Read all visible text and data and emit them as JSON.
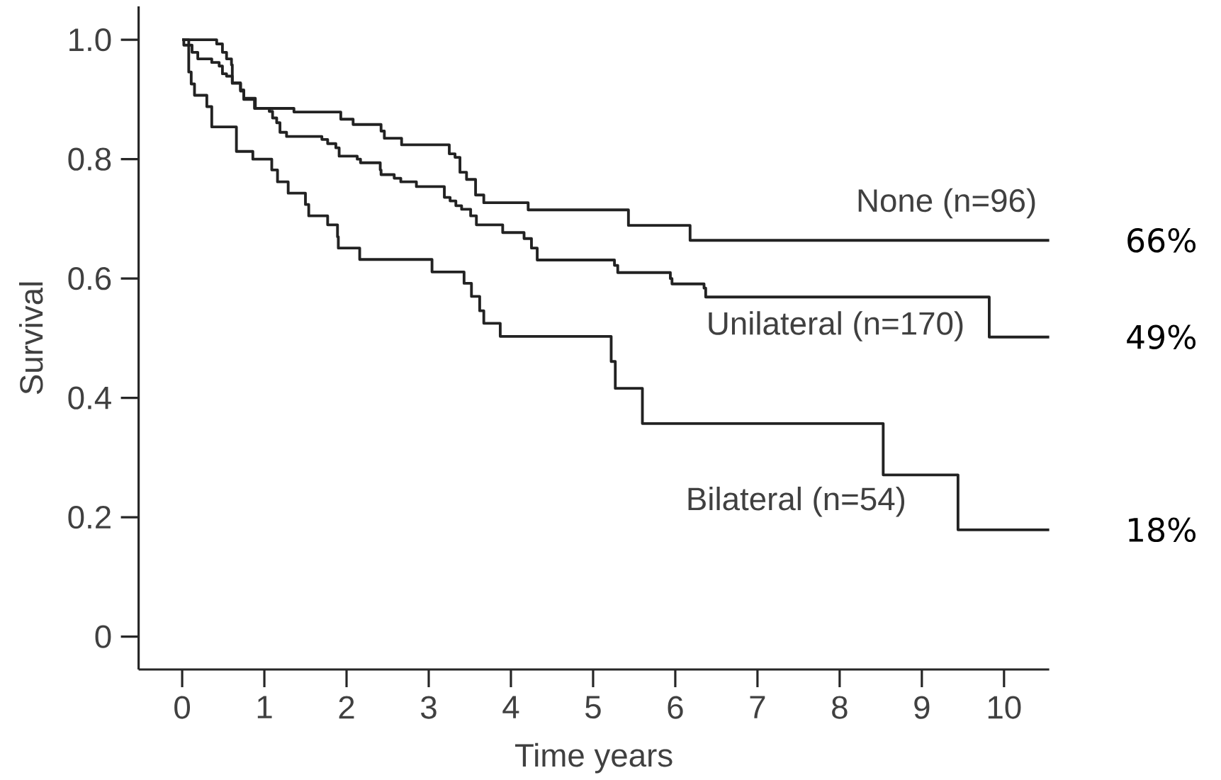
{
  "chart_data": {
    "type": "step",
    "xlabel": "Time years",
    "ylabel": "Survival",
    "xlim": [
      -0.53,
      10.55
    ],
    "ylim": [
      -0.055,
      1.056
    ],
    "xticks": [
      0,
      1,
      2,
      3,
      4,
      5,
      6,
      7,
      8,
      9,
      10
    ],
    "yticks": [
      {
        "value": 0,
        "label": "0"
      },
      {
        "value": 0.2,
        "label": "0.2"
      },
      {
        "value": 0.4,
        "label": "0.4"
      },
      {
        "value": 0.6,
        "label": "0.6"
      },
      {
        "value": 0.8,
        "label": "0.8"
      },
      {
        "value": 1.0,
        "label": "1.0"
      }
    ],
    "grid": false,
    "series": [
      {
        "name": "None (n=96)",
        "color": "#222222",
        "x": [
          0,
          0.42,
          0.49,
          0.54,
          0.6,
          0.61,
          0.71,
          0.75,
          0.88,
          1.36,
          1.93,
          2.08,
          2.42,
          2.46,
          2.67,
          3.25,
          3.32,
          3.38,
          3.46,
          3.57,
          3.67,
          4.21,
          5.43,
          6.18,
          10.55
        ],
        "values": [
          1.0,
          0.993,
          0.979,
          0.968,
          0.958,
          0.928,
          0.914,
          0.9,
          0.885,
          0.879,
          0.867,
          0.858,
          0.847,
          0.835,
          0.824,
          0.809,
          0.803,
          0.778,
          0.766,
          0.74,
          0.727,
          0.715,
          0.689,
          0.664,
          0.664
        ]
      },
      {
        "name": "Unilateral (n=170)",
        "color": "#222222",
        "x": [
          0,
          0.02,
          0.12,
          0.19,
          0.36,
          0.45,
          0.49,
          0.54,
          0.61,
          0.71,
          0.75,
          0.89,
          1.06,
          1.1,
          1.15,
          1.19,
          1.27,
          1.7,
          1.77,
          1.87,
          1.91,
          2.13,
          2.17,
          2.41,
          2.42,
          2.58,
          2.66,
          2.85,
          3.19,
          3.26,
          3.33,
          3.4,
          3.51,
          3.58,
          3.9,
          4.16,
          4.25,
          4.32,
          5.26,
          5.3,
          5.94,
          5.96,
          6.35,
          6.37,
          9.82,
          10.55
        ],
        "values": [
          1.0,
          0.991,
          0.979,
          0.968,
          0.962,
          0.956,
          0.943,
          0.939,
          0.927,
          0.916,
          0.902,
          0.885,
          0.88,
          0.869,
          0.861,
          0.845,
          0.838,
          0.833,
          0.826,
          0.819,
          0.805,
          0.8,
          0.794,
          0.782,
          0.774,
          0.768,
          0.762,
          0.754,
          0.736,
          0.73,
          0.722,
          0.716,
          0.705,
          0.69,
          0.677,
          0.667,
          0.651,
          0.631,
          0.622,
          0.61,
          0.6,
          0.591,
          0.584,
          0.569,
          0.502,
          0.502
        ]
      },
      {
        "name": "Bilateral (n=54)",
        "color": "#222222",
        "x": [
          0,
          0.08,
          0.11,
          0.15,
          0.3,
          0.36,
          0.66,
          0.86,
          1.09,
          1.16,
          1.29,
          1.5,
          1.54,
          1.77,
          1.89,
          1.9,
          2.16,
          3.04,
          3.43,
          3.52,
          3.62,
          3.67,
          3.87,
          5.22,
          5.27,
          5.6,
          8.53,
          9.44,
          10.55
        ],
        "values": [
          1.0,
          0.946,
          0.926,
          0.907,
          0.888,
          0.854,
          0.813,
          0.8,
          0.782,
          0.762,
          0.743,
          0.724,
          0.705,
          0.69,
          0.67,
          0.651,
          0.632,
          0.611,
          0.592,
          0.57,
          0.546,
          0.525,
          0.503,
          0.461,
          0.416,
          0.357,
          0.271,
          0.179,
          0.179
        ]
      }
    ],
    "annotations": [
      "66%",
      "49%",
      "18%"
    ]
  }
}
